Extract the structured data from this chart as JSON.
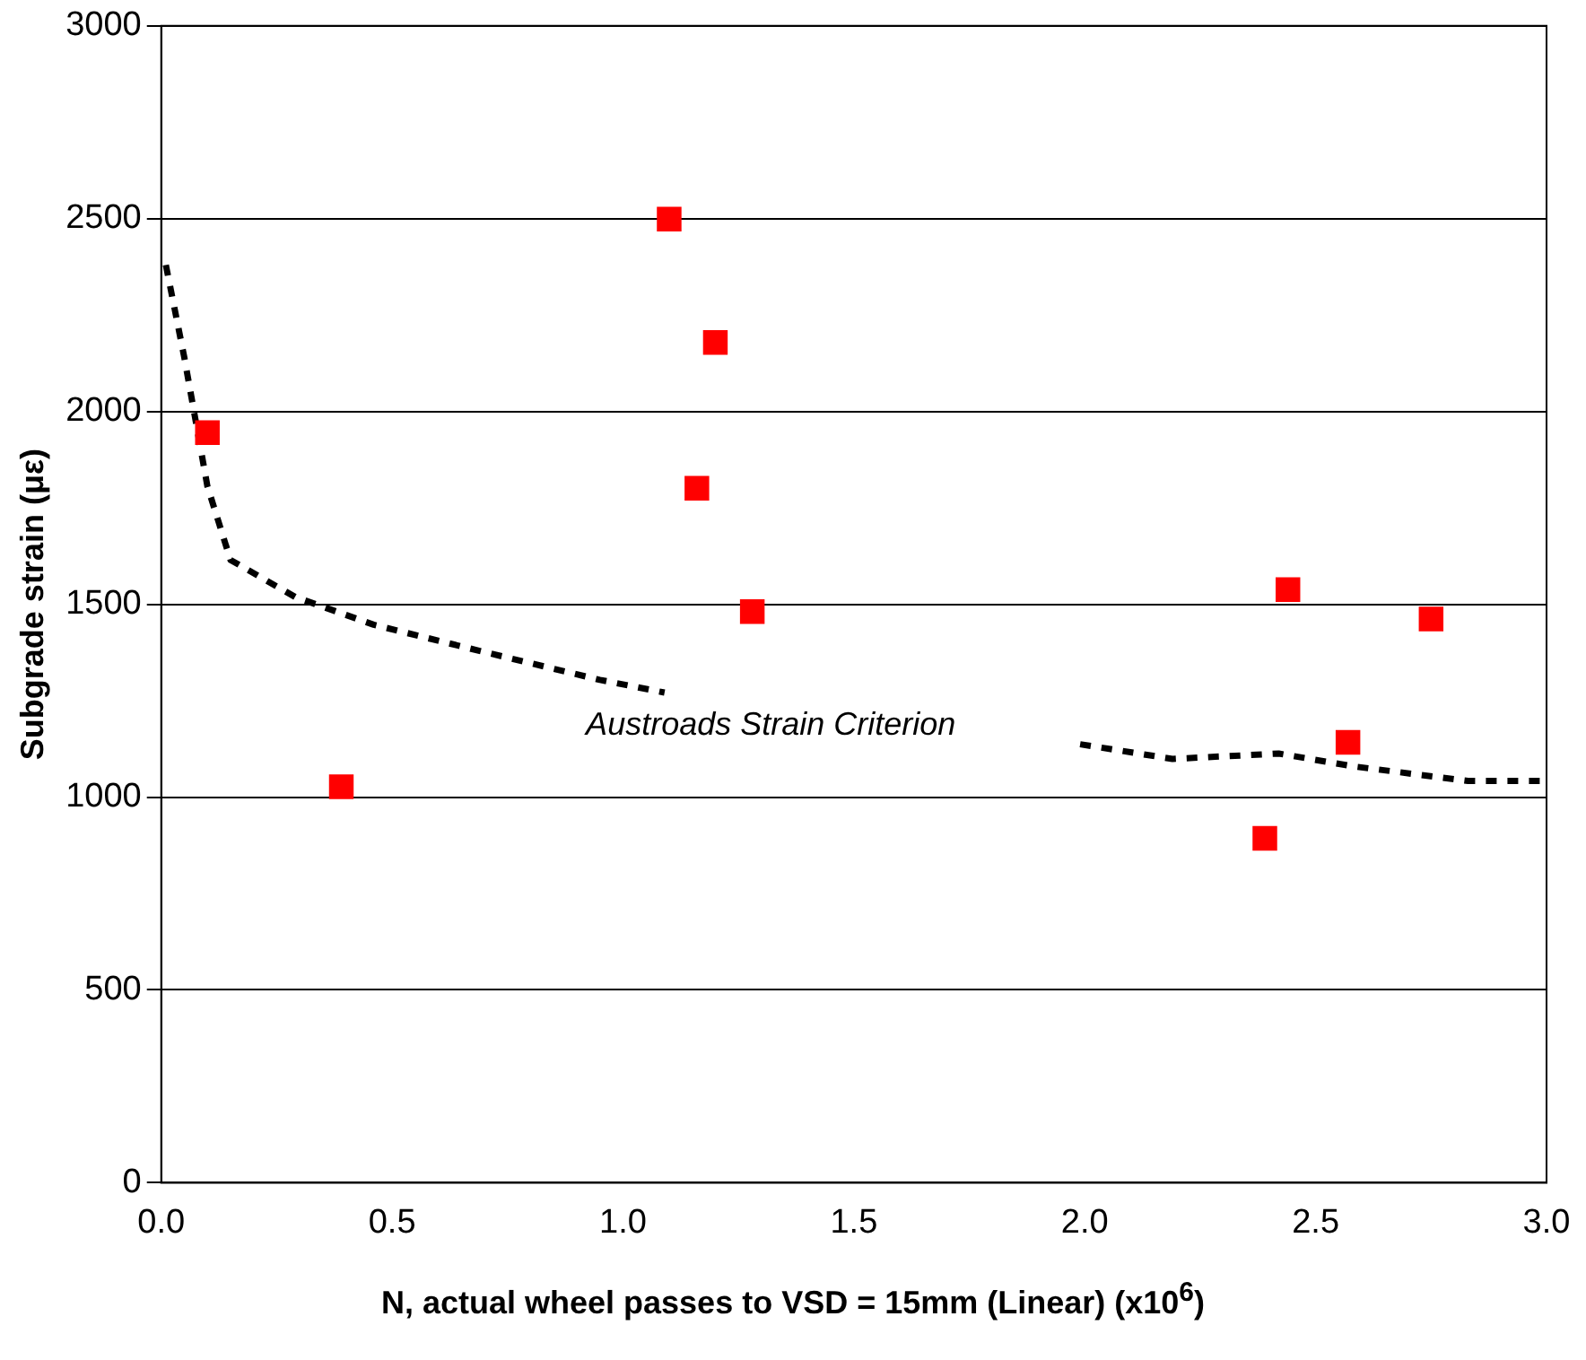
{
  "chart_data": {
    "type": "scatter",
    "ylabel": "Subgrade strain (με)",
    "xlabel": "N, actual wheel passes to VSD = 15mm (Linear) (x10$^{6}$)",
    "xlim": [
      0,
      3
    ],
    "xticks": [
      {
        "value": 0,
        "label": "0.0"
      },
      {
        "value": 0.5,
        "label": "0.5"
      },
      {
        "value": 1,
        "label": "1.0"
      },
      {
        "value": 1.5,
        "label": "1.5"
      },
      {
        "value": 2,
        "label": "2.0"
      },
      {
        "value": 2.5,
        "label": "2.5"
      },
      {
        "value": 3,
        "label": "3.0"
      }
    ],
    "ylim": [
      0,
      3000
    ],
    "yticks": [
      0,
      500,
      1000,
      1500,
      2000,
      2500,
      3000
    ],
    "grid": "y",
    "legend": false,
    "series": [
      {
        "type": "scatter",
        "color": "#ff0000",
        "marker": "square",
        "x": [
          0.1,
          0.39,
          1.1,
          1.2,
          1.16,
          1.28,
          2.44,
          2.39,
          2.57,
          2.75
        ],
        "values": [
          1945,
          1027,
          2499,
          2179,
          1801,
          1481,
          1538,
          893,
          1142,
          1462
        ]
      },
      {
        "type": "line",
        "color": "#000000",
        "marker": "none",
        "line_style": "dashed",
        "x": [
          0.01,
          0.05,
          0.1,
          0.15,
          0.29,
          0.46,
          0.7,
          0.95,
          1.09,
          1.5,
          1.99,
          2.19,
          2.42,
          2.58,
          2.83,
          3.0
        ],
        "values": [
          2380,
          2140,
          1806,
          1615,
          1519,
          1447,
          1376,
          1304,
          1271,
          null,
          1137,
          1099,
          1113,
          1080,
          1042,
          1042
        ]
      }
    ],
    "annotations": [
      "Austroads Strain Criterion"
    ]
  }
}
